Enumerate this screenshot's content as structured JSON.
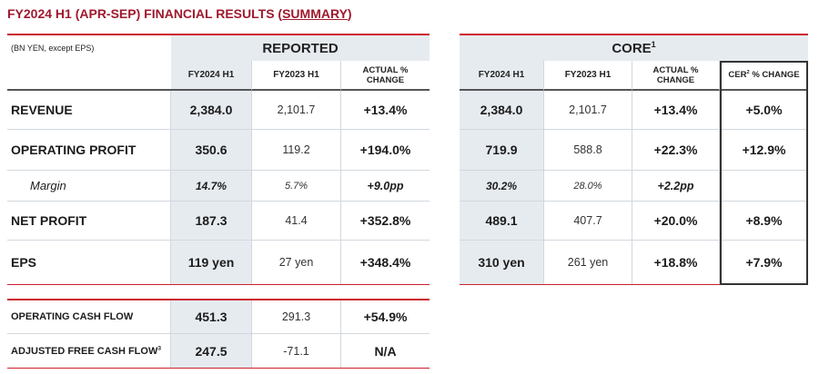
{
  "title": {
    "text_before": "FY2024 H1 (APR-SEP) FINANCIAL RESULTS (",
    "text_underlined": "SUMMARY",
    "text_after": ")"
  },
  "units_note": "(BN YEN, except EPS)",
  "reported": {
    "header": "REPORTED",
    "col_fy2024": "FY2024 H1",
    "col_fy2023": "FY2023 H1",
    "col_change": [
      "ACTUAL %",
      "CHANGE"
    ]
  },
  "core": {
    "header": "CORE",
    "header_note": "1",
    "col_fy2024": "FY2024 H1",
    "col_fy2023": "FY2023 H1",
    "col_change": [
      "ACTUAL %",
      "CHANGE"
    ],
    "col_cer": {
      "before": "CER",
      "note": "2",
      "after": "% CHANGE"
    }
  },
  "rows": [
    {
      "label": "REVENUE",
      "reported": [
        "2,384.0",
        "2,101.7",
        "+13.4%"
      ],
      "core": [
        "2,384.0",
        "2,101.7",
        "+13.4%",
        "+5.0%"
      ]
    },
    {
      "label": "OPERATING PROFIT",
      "reported": [
        "350.6",
        "119.2",
        "+194.0%"
      ],
      "core": [
        "719.9",
        "588.8",
        "+22.3%",
        "+12.9%"
      ]
    },
    {
      "label": "Margin",
      "reported": [
        "14.7%",
        "5.7%",
        "+9.0pp"
      ],
      "core": [
        "30.2%",
        "28.0%",
        "+2.2pp"
      ]
    },
    {
      "label": "NET PROFIT",
      "reported": [
        "187.3",
        "41.4",
        "+352.8%"
      ],
      "core": [
        "489.1",
        "407.7",
        "+20.0%",
        "+8.9%"
      ]
    },
    {
      "label": "EPS",
      "reported": [
        "119 yen",
        "27 yen",
        "+348.4%"
      ],
      "core": [
        "310 yen",
        "261 yen",
        "+18.8%",
        "+7.9%"
      ]
    }
  ],
  "cash_flow_rows": [
    {
      "label": "OPERATING CASH FLOW",
      "values": [
        "451.3",
        "291.3",
        "+54.9%"
      ]
    },
    {
      "label": "ADJUSTED FREE CASH FLOW",
      "note": "3",
      "values": [
        "247.5",
        "-71.1",
        "N/A"
      ]
    }
  ],
  "colors": {
    "title": "#9e1a2e",
    "rule": "#cc1f2f",
    "highlight_column": "#e6ebf0",
    "header_rule": "#555555",
    "grid_line": "#d2d8de",
    "cer_box_border": "#333333",
    "text": "#1c1c1c"
  }
}
